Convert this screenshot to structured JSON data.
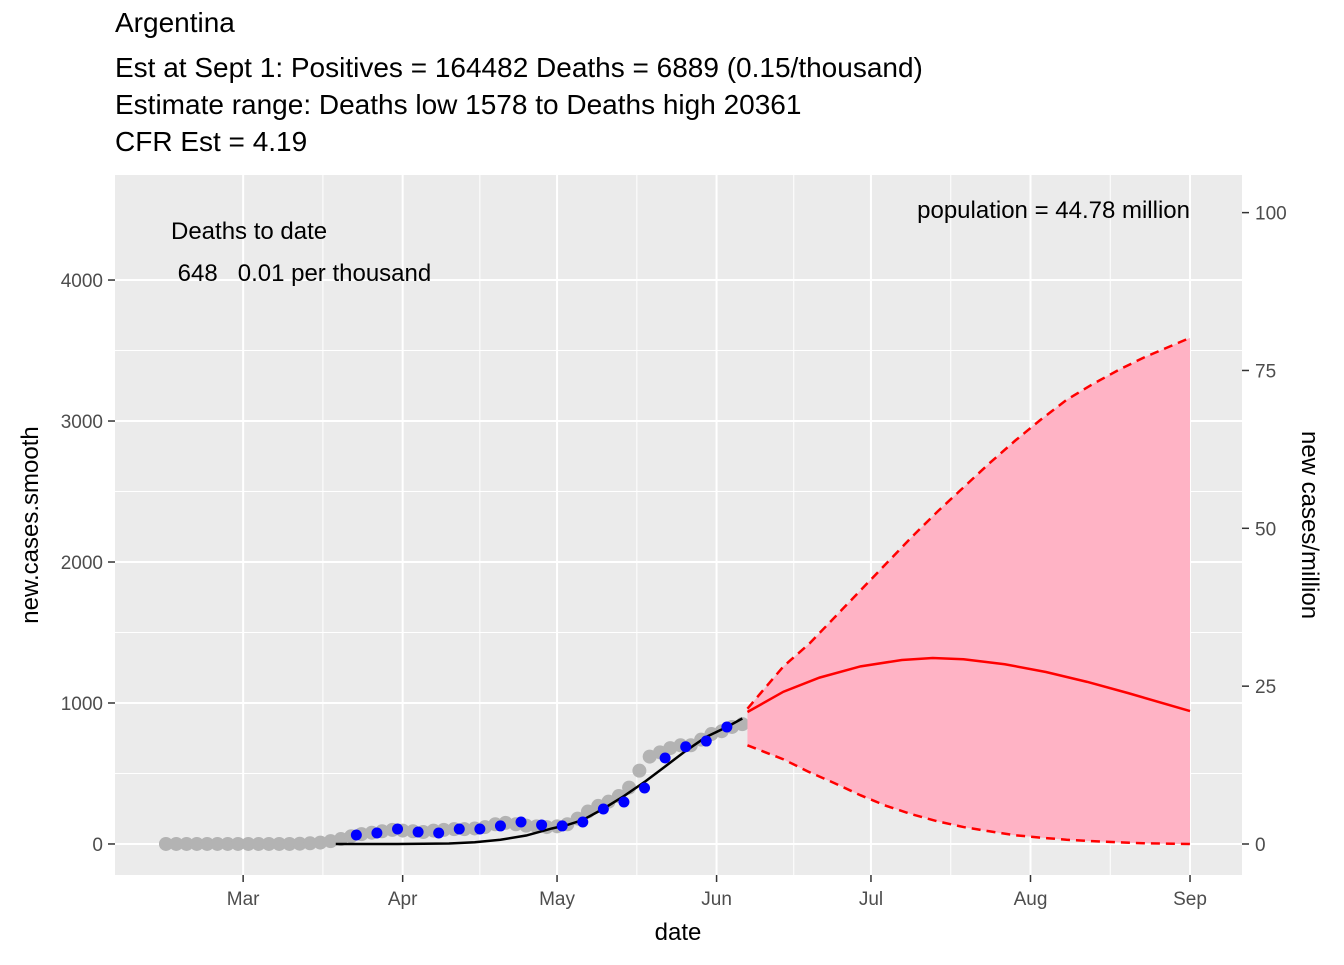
{
  "chart_data": {
    "type": "line",
    "title": "Argentina",
    "subtitle": [
      "Est at Sept 1: Positives = 164482 Deaths = 6889 (0.15/thousand)",
      "Estimate range: Deaths low 1578 to Deaths high 20361",
      "CFR Est = 4.19"
    ],
    "x_label": "date",
    "y_label": "new.cases.smooth",
    "y2_label": "new cases/million",
    "annotations": [
      "Deaths to date",
      " 648   0.01 per thousand",
      "population = 44.78 million"
    ],
    "xlim": [
      -24.9,
      194.1
    ],
    "xticks": [
      {
        "value": 0,
        "label": "Mar"
      },
      {
        "value": 31,
        "label": "Apr"
      },
      {
        "value": 61,
        "label": "May"
      },
      {
        "value": 92,
        "label": "Jun"
      },
      {
        "value": 122,
        "label": "Jul"
      },
      {
        "value": 153,
        "label": "Aug"
      },
      {
        "value": 184,
        "label": "Sep"
      }
    ],
    "ylim": [
      -220,
      4745
    ],
    "yticks": [
      0,
      1000,
      2000,
      3000,
      4000
    ],
    "y2lim": [
      -4.91,
      105.96
    ],
    "y2ticks": [
      0,
      25,
      50,
      75,
      100
    ],
    "grid": true,
    "series": [
      {
        "style": "points",
        "color": "#b3b3b3",
        "x": [
          -15,
          -13,
          -11,
          -9,
          -7,
          -5,
          -3,
          -1,
          1,
          3,
          5,
          7,
          9,
          11,
          13,
          15,
          17,
          19,
          21,
          23,
          25,
          27,
          29,
          31,
          33,
          35,
          37,
          39,
          41,
          43,
          45,
          47,
          49,
          51,
          53,
          55,
          57,
          59,
          61,
          63,
          65,
          67,
          69,
          71,
          73,
          75,
          77,
          79,
          81,
          83,
          85,
          87,
          89,
          91,
          93,
          95,
          97
        ],
        "values": [
          0,
          0,
          0,
          0,
          0,
          0,
          0,
          0,
          0,
          0,
          0,
          0,
          0,
          2,
          5,
          10,
          20,
          35,
          55,
          70,
          80,
          90,
          100,
          95,
          90,
          85,
          95,
          100,
          105,
          105,
          110,
          120,
          140,
          150,
          140,
          130,
          125,
          120,
          125,
          140,
          180,
          230,
          270,
          300,
          340,
          400,
          520,
          620,
          650,
          680,
          700,
          700,
          740,
          780,
          800,
          830,
          850
        ]
      },
      {
        "style": "line",
        "color": "#000000",
        "x": [
          18,
          30,
          40,
          45,
          50,
          55,
          60,
          63,
          66,
          70,
          74,
          78,
          82,
          86,
          90,
          94,
          97
        ],
        "values": [
          0,
          0,
          3,
          12,
          30,
          60,
          110,
          135,
          170,
          250,
          340,
          440,
          550,
          660,
          760,
          830,
          890
        ]
      },
      {
        "style": "points",
        "color": "#0000ff",
        "x": [
          22,
          26,
          30,
          34,
          38,
          42,
          46,
          50,
          54,
          58,
          62,
          66,
          70,
          74,
          78,
          82,
          86,
          90,
          94
        ],
        "values": [
          64,
          78,
          106,
          85,
          78,
          106,
          106,
          128,
          156,
          135,
          128,
          156,
          248,
          298,
          397,
          610,
          690,
          730,
          830
        ]
      },
      {
        "style": "band",
        "color": "#ffb3c5",
        "edge_color": "#ff0000",
        "x": [
          98,
          105,
          110,
          115,
          120,
          125,
          130,
          135,
          140,
          145,
          150,
          155,
          160,
          165,
          170,
          175,
          184
        ],
        "low": [
          700,
          600,
          510,
          430,
          345,
          270,
          210,
          160,
          120,
          90,
          62,
          45,
          30,
          20,
          12,
          5,
          0
        ],
        "high": [
          960,
          1260,
          1420,
          1610,
          1800,
          1990,
          2180,
          2360,
          2530,
          2700,
          2860,
          3010,
          3150,
          3260,
          3360,
          3450,
          3590
        ]
      },
      {
        "style": "line",
        "color": "#ff0000",
        "x": [
          98,
          105,
          112,
          120,
          128,
          134,
          140,
          148,
          156,
          164,
          172,
          184
        ],
        "values": [
          936,
          1080,
          1180,
          1260,
          1305,
          1319,
          1310,
          1275,
          1220,
          1150,
          1070,
          943
        ]
      }
    ]
  }
}
